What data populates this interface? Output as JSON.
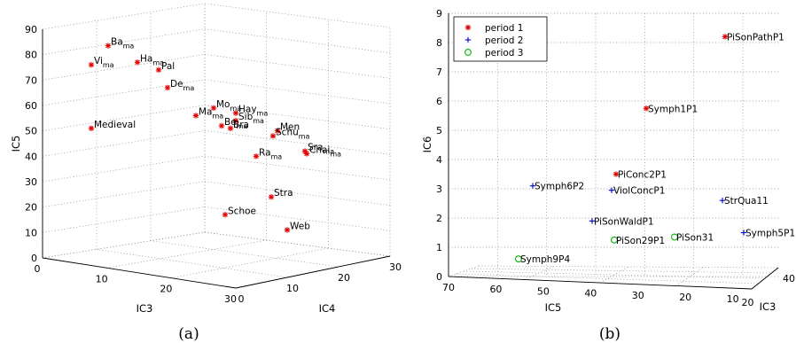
{
  "chart_data": [
    {
      "type": "scatter",
      "panel": "(a)",
      "view": "3d",
      "xlabel": "IC3",
      "ylabel": "IC4",
      "zlabel": "IC5",
      "xticks": [
        "0",
        "10",
        "20",
        "30"
      ],
      "yticks": [
        "0",
        "10",
        "20",
        "30"
      ],
      "zticks": [
        "0",
        "10",
        "20",
        "30",
        "40",
        "50",
        "60",
        "70",
        "80",
        "90"
      ],
      "zlim": [
        0,
        90
      ],
      "grid": true,
      "points": [
        {
          "label": "Ba",
          "sub": "ma",
          "z": 83.5
        },
        {
          "label": "Vi",
          "sub": "ma",
          "z": 76
        },
        {
          "label": "Ha",
          "sub": "ma",
          "z": 77
        },
        {
          "label": "Pal",
          "sub": "",
          "z": 74
        },
        {
          "label": "De",
          "sub": "ma",
          "z": 67
        },
        {
          "label": "Medieval",
          "sub": "",
          "z": 51
        },
        {
          "label": "Mo",
          "sub": "ma",
          "z": 59
        },
        {
          "label": "Hay",
          "sub": "ma",
          "z": 57
        },
        {
          "label": "Ma",
          "sub": "ma",
          "z": 56
        },
        {
          "label": "Sib",
          "sub": "ma",
          "z": 54
        },
        {
          "label": "Be",
          "sub": "ma",
          "z": 52
        },
        {
          "label": "Bra",
          "sub": "",
          "z": 51
        },
        {
          "label": "Men",
          "sub": "",
          "z": 50
        },
        {
          "label": "Schu",
          "sub": "ma",
          "z": 48
        },
        {
          "label": "Ra",
          "sub": "ma",
          "z": 40
        },
        {
          "label": "Sra",
          "sub": "ma",
          "z": 42
        },
        {
          "label": "Chai",
          "sub": "ma",
          "z": 41
        },
        {
          "label": "Stra",
          "sub": "",
          "z": 24
        },
        {
          "label": "Schoe",
          "sub": "",
          "z": 17
        },
        {
          "label": "Web",
          "sub": "",
          "z": 11
        }
      ],
      "marker": "*",
      "color": "#e00000"
    },
    {
      "type": "scatter",
      "panel": "(b)",
      "view": "3d",
      "xlabel": "IC5",
      "ylabel": "IC3",
      "zlabel": "IC6",
      "xticks": [
        "70",
        "60",
        "50",
        "40",
        "30",
        "20",
        "10"
      ],
      "yticks": [
        "20",
        "40"
      ],
      "zticks": [
        "0",
        "1",
        "2",
        "3",
        "4",
        "5",
        "6",
        "7",
        "8",
        "9"
      ],
      "zlim": [
        0,
        9
      ],
      "grid": true,
      "legend_position": "top-left",
      "series": [
        {
          "name": "period 1",
          "marker": "*",
          "color": "#e00000",
          "points": [
            {
              "label": "PiSonPathP1",
              "z": 8.2
            },
            {
              "label": "Symph1P1",
              "z": 5.75
            },
            {
              "label": "PiConc2P1",
              "z": 3.5
            }
          ]
        },
        {
          "name": "period 2",
          "marker": "+",
          "color": "#0000d0",
          "points": [
            {
              "label": "Symph6P2",
              "z": 3.1
            },
            {
              "label": "ViolConcP1",
              "z": 2.95
            },
            {
              "label": "StrQua11",
              "z": 2.6
            },
            {
              "label": "PiSonWaldP1",
              "z": 1.9
            },
            {
              "label": "Symph5P1",
              "z": 1.5
            }
          ]
        },
        {
          "name": "period 3",
          "marker": "o",
          "color": "#00b000",
          "points": [
            {
              "label": "PiSon29P1",
              "z": 1.25
            },
            {
              "label": "PiSon31",
              "z": 1.35
            },
            {
              "label": "Symph9P4",
              "z": 0.6
            }
          ]
        }
      ]
    }
  ],
  "captions": [
    "(a)",
    "(b)"
  ]
}
